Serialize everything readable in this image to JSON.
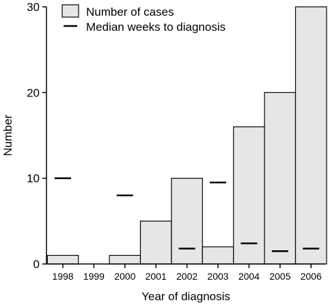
{
  "chart_data": {
    "type": "bar",
    "title": "",
    "xlabel": "Year of diagnosis",
    "ylabel": "Number",
    "ylim": [
      0,
      30
    ],
    "yticks": [
      0,
      10,
      20,
      30
    ],
    "grid": false,
    "legend_position": "top-left",
    "categories": [
      "1998",
      "1999",
      "2000",
      "2001",
      "2002",
      "2003",
      "2004",
      "2005",
      "2006"
    ],
    "series": [
      {
        "name": "Number of cases",
        "type": "bar",
        "color": "#e6e6e6",
        "values": [
          1,
          0,
          1,
          5,
          10,
          2,
          16,
          20,
          30
        ]
      },
      {
        "name": "Median weeks to diagnosis",
        "type": "marker",
        "color": "#000000",
        "values": [
          10,
          null,
          8,
          null,
          1.8,
          9.5,
          2.4,
          1.5,
          1.8
        ]
      }
    ]
  }
}
